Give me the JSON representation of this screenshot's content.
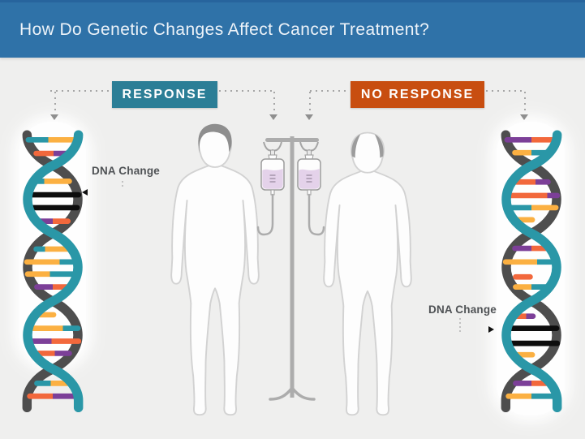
{
  "header": {
    "title": "How Do Genetic Changes Affect Cancer Treatment?"
  },
  "badges": {
    "response": "RESPONSE",
    "no_response": "NO RESPONSE"
  },
  "annotations": {
    "dna_change_left": "DNA Change",
    "dna_change_right": "DNA Change"
  },
  "colors": {
    "header_bg": "#2F72A8",
    "page_bg": "#EFEFEE",
    "response_bg": "#2B7E96",
    "no_response_bg": "#C84E10",
    "dna_teal": "#2A97A7",
    "dna_gray": "#4E4E4E",
    "rung_yellow": "#FBB042",
    "rung_orange": "#F2683C",
    "rung_purple": "#7C3F98",
    "rung_black": "#0D0D0D",
    "iv_fluid": "#E4D2EA",
    "figure_outline": "#D2D2D2",
    "hair_gray": "#8E8E8E"
  },
  "dna": {
    "left": {
      "rungs": [
        [
          19,
          12,
          88,
          "teal",
          "yellow",
          0.42
        ],
        [
          38,
          23,
          77,
          "orange",
          "purple",
          0.52
        ],
        [
          77,
          23,
          77,
          "teal",
          "yellow",
          0.28
        ],
        [
          96,
          10,
          90,
          "black",
          "black",
          1
        ],
        [
          114,
          12,
          88,
          "black",
          "black",
          1
        ],
        [
          133,
          25,
          75,
          "purple",
          "orange",
          0.5
        ],
        [
          172,
          23,
          77,
          "teal",
          "yellow",
          0.3
        ],
        [
          190,
          10,
          90,
          "yellow",
          "teal",
          0.62
        ],
        [
          207,
          11,
          89,
          "yellow",
          "teal",
          0.45
        ],
        [
          225,
          24,
          76,
          "purple",
          "orange",
          0.5
        ],
        [
          264,
          26,
          55,
          "yellow",
          "yellow",
          1
        ],
        [
          283,
          11,
          89,
          "yellow",
          "teal",
          0.68
        ],
        [
          301,
          10,
          90,
          "purple",
          "orange",
          0.48
        ],
        [
          318,
          23,
          77,
          "orange",
          "purple",
          0.55
        ],
        [
          360,
          24,
          76,
          "teal",
          "yellow",
          0.45
        ],
        [
          378,
          14,
          86,
          "orange",
          "purple",
          0.5
        ]
      ]
    },
    "right": {
      "rungs": [
        [
          19,
          12,
          88,
          "purple",
          "orange",
          0.5
        ],
        [
          37,
          23,
          77,
          "yellow",
          "teal",
          0.5
        ],
        [
          78,
          23,
          77,
          "orange",
          "purple",
          0.6
        ],
        [
          97,
          10,
          90,
          "orange",
          "purple",
          0.78
        ],
        [
          114,
          12,
          88,
          "teal",
          "yellow",
          0.5
        ],
        [
          131,
          26,
          55,
          "yellow",
          "yellow",
          1
        ],
        [
          171,
          23,
          77,
          "purple",
          "orange",
          0.5
        ],
        [
          190,
          10,
          90,
          "yellow",
          "teal",
          0.6
        ],
        [
          211,
          24,
          52,
          "orange",
          "orange",
          1
        ],
        [
          225,
          24,
          76,
          "yellow",
          "teal",
          0.5
        ],
        [
          266,
          22,
          56,
          "orange",
          "purple",
          0.6
        ],
        [
          283,
          11,
          89,
          "black",
          "black",
          1
        ],
        [
          304,
          10,
          90,
          "black",
          "black",
          1
        ],
        [
          320,
          26,
          55,
          "yellow",
          "yellow",
          1
        ],
        [
          360,
          24,
          76,
          "purple",
          "orange",
          0.5
        ],
        [
          378,
          14,
          86,
          "yellow",
          "teal",
          0.5
        ]
      ]
    }
  }
}
